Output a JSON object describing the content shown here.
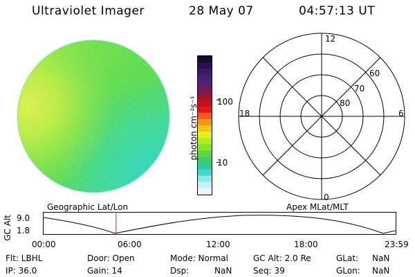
{
  "header": {
    "instrument": "Ultraviolet Imager",
    "date": "28 May 07",
    "time": "04:57:13 UT"
  },
  "colorbar": {
    "label": "photon cm⁻²s⁻¹",
    "ticks": [
      "100",
      "10"
    ],
    "colors": [
      "#1a0a2a",
      "#2a1050",
      "#3a186a",
      "#4a1e74",
      "#5a1e70",
      "#7a1850",
      "#a01428",
      "#c8101a",
      "#e0181a",
      "#f05a1a",
      "#f0961a",
      "#f0c81a",
      "#e8f01a",
      "#b4ec22",
      "#84e42a",
      "#5ad83a",
      "#3ccc6a",
      "#30c8a0",
      "#40d8d0",
      "#90e8ea",
      "#c8f0f4",
      "#e8f8fa"
    ]
  },
  "polar": {
    "mlt_labels": {
      "top": "12",
      "left": "18",
      "right": "6",
      "bottom": "0"
    },
    "mlat_labels": [
      "60",
      "70",
      "80"
    ]
  },
  "timeline": {
    "y_axis_label": "GC Alt",
    "y_ticks": [
      "9.0",
      "1.8"
    ],
    "left_title": "Geographic Lat/Lon",
    "right_title": "Apex MLat/MLT",
    "x_ticks": [
      "00:00",
      "06:00",
      "12:00",
      "18:00",
      "23:59"
    ],
    "current_time_fraction": 0.206
  },
  "info": {
    "flt": "Flt: LBHL",
    "ip": "IP: 36.0",
    "door": "Door: Open",
    "gain": "Gain: 14",
    "mode": "Mode: Normal",
    "dsp": "Dsp:",
    "dsp_val": "NaN",
    "gc_alt": "GC Alt: 2.0 Re",
    "seq": "Seq: 39",
    "glat": "GLat:",
    "glat_val": "NaN",
    "glon": "GLon:",
    "glon_val": "NaN"
  }
}
